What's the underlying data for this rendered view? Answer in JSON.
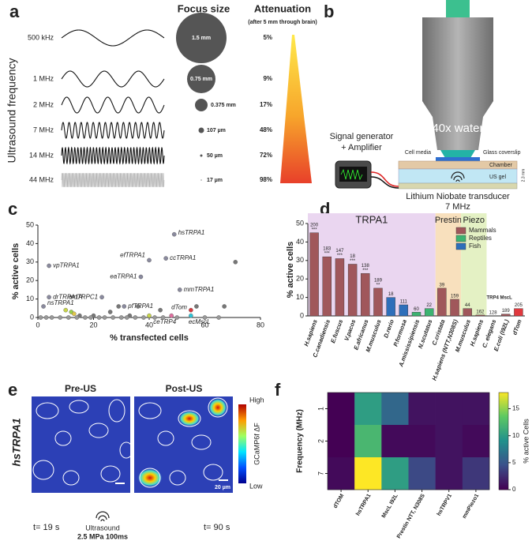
{
  "panel_labels": [
    "a",
    "b",
    "c",
    "d",
    "e",
    "f"
  ],
  "frequency_figure": {
    "focus_title": "Focus size",
    "attenuation_title": "Attenuation",
    "attenuation_note": "(after 5 mm through brain)",
    "axis_label": "Ultrasound frequency",
    "rows": [
      {
        "frequency": "500 kHz",
        "focus": "1.5 mm",
        "attenuation": "5%"
      },
      {
        "frequency": "1 MHz",
        "focus": "0.75 mm",
        "attenuation": "9%"
      },
      {
        "frequency": "2 MHz",
        "focus": "0.375 mm",
        "attenuation": "17%"
      },
      {
        "frequency": "7 MHz",
        "focus": "107 µm",
        "attenuation": "48%"
      },
      {
        "frequency": "14 MHz",
        "focus": "50 µm",
        "attenuation": "72%"
      },
      {
        "frequency": "44 MHz",
        "focus": "17 µm",
        "attenuation": "98%"
      }
    ]
  },
  "setup": {
    "objective": "40x  water",
    "generator": [
      "Signal generator",
      "+ Amplifier"
    ],
    "cell_media": "Cell media",
    "coverslip": "Glass coverslip",
    "chamber": "Chamber",
    "gel": "US gel",
    "transducer": "Lithium Niobate transducer",
    "transducer_frequency": "7 MHz",
    "depth": "2.3 mm"
  },
  "imaging": {
    "pre_label": "Pre-US",
    "post_label": "Post-US",
    "construct": "hsTRPA1",
    "colorbar_high": "High",
    "colorbar_low": "Low",
    "colorbar_label": "GCaMP6f ΔF",
    "scale": "20 µm",
    "time_pre": "t= 19 s",
    "time_post": "t= 90 s",
    "stimulus": "Ultrasound",
    "stimulus_params": "2.5 MPa 100ms"
  },
  "chart_data": [
    {
      "type": "scatter",
      "xlabel": "% transfected cells",
      "ylabel": "% active cells",
      "xlim": [
        0,
        80
      ],
      "ylim": [
        0,
        50
      ],
      "xticks": [
        0,
        20,
        40,
        60,
        80
      ],
      "yticks": [
        0,
        10,
        20,
        30,
        40,
        50
      ],
      "x": [
        49,
        46,
        40,
        37,
        4,
        51,
        23,
        4,
        31,
        2,
        55,
        48,
        55,
        71,
        67,
        57,
        44,
        36,
        29,
        26,
        10,
        12,
        13,
        15,
        20,
        33,
        40,
        5,
        8,
        11,
        14,
        17,
        19,
        22,
        24,
        27,
        30,
        32,
        35,
        38,
        42,
        45,
        50,
        60,
        65,
        3,
        1
      ],
      "y": [
        45,
        32,
        31,
        22,
        28,
        15,
        11,
        11,
        6,
        6,
        4,
        1,
        1,
        30,
        6,
        6,
        4,
        6,
        6,
        3,
        4,
        3,
        2,
        1,
        1,
        1,
        1,
        0,
        0,
        0,
        0,
        0,
        0,
        0,
        0,
        0,
        0,
        0,
        0,
        0,
        0,
        0,
        0,
        0,
        0,
        0,
        0
      ],
      "labels": [
        "hsTRPA1",
        "ccTRPA1",
        "efTRPA1",
        "eaTRPA1",
        "vpTRPA1",
        "mmTRPA1",
        "amTRPC1",
        "drTRPA1A",
        "pfTRPA1",
        "nsTRPA1",
        "dTom",
        "ceTRP4",
        "ecMscL",
        null,
        null,
        null,
        null,
        null,
        null,
        null,
        null,
        null,
        null,
        null,
        null,
        null,
        null,
        null,
        null,
        null,
        null,
        null,
        null,
        null,
        null,
        null,
        null,
        null,
        null,
        null,
        null,
        null,
        null,
        null,
        null,
        null,
        null
      ],
      "colors": [
        "#8a8a9e",
        "#8a8a9e",
        "#8a8a9e",
        "#8a8a9e",
        "#8a8a9e",
        "#8a8a9e",
        "#8a8a9e",
        "#8a8a9e",
        "#8a8a9e",
        "#8a8a9e",
        "#d9393e",
        "#e070a0",
        "#2ec4d6",
        "#777",
        "#777",
        "#777",
        "#777",
        "#777",
        "#777",
        "#777",
        "#c9d64a",
        "#9ad14b",
        "#e0c84a",
        "#777",
        "#777",
        "#777",
        "#c9d64a",
        "#999",
        "#999",
        "#999",
        "#999",
        "#999",
        "#999",
        "#999",
        "#999",
        "#999",
        "#999",
        "#999",
        "#999",
        "#999",
        "#999",
        "#999",
        "#999",
        "#999",
        "#999",
        "#999",
        "#999"
      ]
    },
    {
      "type": "bar",
      "ylabel": "% active cells",
      "ylim": [
        0,
        50
      ],
      "yticks": [
        0,
        10,
        20,
        30,
        40,
        50
      ],
      "categories": [
        "H.sapiens",
        "C.canadiensis",
        "E.fuscus",
        "V.pacos",
        "E.africanus",
        "M.musculus",
        "D.rerio",
        "P.formosa",
        "A.mississipiensis",
        "N.scutatus",
        "C.cristata",
        "H.sapiens (NTT,N308S)",
        "M.musculus",
        "H.sapiens",
        "C. elegans",
        "E.coli (I92L)",
        "dTom"
      ],
      "values": [
        45,
        32,
        31,
        28,
        23,
        15,
        10,
        6,
        2,
        4,
        15,
        9,
        4,
        0.5,
        0,
        1,
        4
      ],
      "colors": [
        "#a0575b",
        "#a0575b",
        "#a0575b",
        "#a0575b",
        "#a0575b",
        "#a0575b",
        "#2e6fba",
        "#2e6fba",
        "#3cb371",
        "#3cb371",
        "#a0575b",
        "#a0575b",
        "#a0575b",
        "#a0575b",
        "#a0575b",
        "#a0575b",
        "#e0393e"
      ],
      "n_labels": [
        "200",
        "183",
        "147",
        "18",
        "138",
        "189",
        "18",
        "111",
        "60",
        "22",
        "39",
        "159",
        "44",
        "162",
        "128",
        "189",
        "205"
      ],
      "significance": [
        "***",
        "***",
        "***",
        "***",
        "***",
        "**",
        null,
        null,
        null,
        null,
        null,
        null,
        null,
        null,
        null,
        null,
        null
      ],
      "groups": [
        {
          "name": "TRPA1",
          "start": 0,
          "end": 9,
          "color": "#ead6f0"
        },
        {
          "name": "Prestin",
          "start": 10,
          "end": 11,
          "color": "#f8e0bd"
        },
        {
          "name": "Piezo",
          "start": 12,
          "end": 13,
          "color": "#e4f1c4"
        }
      ],
      "group_note": "TRP4 MscL",
      "legend": [
        {
          "name": "Mammals",
          "color": "#a0575b"
        },
        {
          "name": "Reptiles",
          "color": "#3cb371"
        },
        {
          "name": "Fish",
          "color": "#2e6fba"
        }
      ]
    },
    {
      "type": "heatmap",
      "ylabel": "Frequency (MHz)",
      "zlabel": "% active Cells",
      "categories": [
        "dTOM",
        "hsTRPA1",
        "MscL I92L",
        "Prestin NTT, N308S",
        "hsTRPV1",
        "mmPiezo1"
      ],
      "y_categories": [
        "1",
        "2",
        "7"
      ],
      "values": [
        [
          0,
          10,
          6,
          1,
          1,
          1
        ],
        [
          0,
          12,
          0.5,
          0.5,
          1,
          0.5
        ],
        [
          0.5,
          18,
          10,
          4,
          1,
          3
        ]
      ],
      "zlim": [
        0,
        18
      ],
      "zticks": [
        0,
        5,
        10,
        15
      ]
    }
  ]
}
